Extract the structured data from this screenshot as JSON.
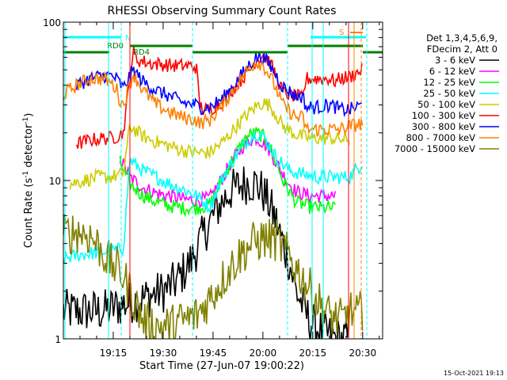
{
  "chart_data": {
    "type": "line",
    "title": "RHESSI Observing Summary Count Rates",
    "xlabel": "Start Time (27-Jun-07 19:00:22)",
    "ylabel": "Count Rate (s",
    "ylabel_sup": "-1",
    "ylabel_rest": " detector",
    "ylabel_sup2": "-1",
    "ylabel_end": ")",
    "y_scale": "log",
    "ylim": [
      1,
      100
    ],
    "xlim_minutes": [
      0,
      96
    ],
    "y_tick_labels": [
      {
        "value": 1,
        "label": "1"
      },
      {
        "value": 10,
        "label": "10"
      },
      {
        "value": 100,
        "label": "100"
      }
    ],
    "x_ticks": [
      {
        "minutes": 15,
        "label": "19:15"
      },
      {
        "minutes": 30,
        "label": "19:30"
      },
      {
        "minutes": 45,
        "label": "19:45"
      },
      {
        "minutes": 60,
        "label": "20:00"
      },
      {
        "minutes": 75,
        "label": "20:15"
      },
      {
        "minutes": 90,
        "label": "20:30"
      }
    ],
    "legend_header": [
      "Det 1,3,4,5,6,9,",
      "FDecim 2, Att 0"
    ],
    "legend_placement": "right",
    "series": [
      {
        "name": "3 - 6 keV",
        "color": "#000000",
        "x": [
          0,
          12,
          16,
          20,
          24,
          27,
          30,
          34,
          38,
          42,
          46,
          50,
          54,
          56,
          58,
          60,
          62,
          64,
          66,
          68,
          70,
          74,
          78,
          82,
          86
        ],
        "y": [
          1.5,
          1.5,
          1.6,
          1.7,
          1.8,
          1.9,
          2.0,
          2.3,
          3.0,
          4.5,
          6.5,
          8.5,
          9.5,
          9.8,
          9.5,
          8.5,
          7.0,
          5.5,
          4.0,
          3.0,
          2.0,
          1.3,
          1.1,
          1.0,
          1.0
        ]
      },
      {
        "name": "6 - 12 keV",
        "color": "#ff00ff",
        "x": [
          17,
          20,
          24,
          28,
          32,
          36,
          40,
          44,
          46,
          48,
          50,
          52,
          54,
          56,
          58,
          60,
          62,
          64,
          66,
          68,
          70,
          74,
          78,
          82
        ],
        "y": [
          14,
          10.5,
          9.0,
          8.3,
          8.0,
          7.6,
          7.5,
          7.7,
          9.0,
          10.5,
          12.5,
          14.5,
          16.5,
          18.0,
          18.5,
          17.5,
          15.5,
          13.0,
          11.0,
          9.5,
          8.5,
          8.0,
          8.0,
          8.0
        ]
      },
      {
        "name": "12 - 25 keV",
        "color": "#00ff00",
        "x": [
          17,
          20,
          24,
          28,
          32,
          36,
          40,
          44,
          46,
          48,
          50,
          52,
          54,
          56,
          58,
          60,
          62,
          64,
          66,
          68,
          70,
          74,
          78,
          82
        ],
        "y": [
          13,
          9.5,
          8.0,
          7.3,
          6.9,
          6.7,
          6.7,
          7.0,
          8.5,
          10.5,
          12.5,
          15.0,
          17.5,
          19.5,
          20.0,
          19.0,
          16.5,
          13.0,
          10.0,
          8.5,
          7.3,
          6.8,
          6.7,
          6.7
        ]
      },
      {
        "name": "25 - 50 keV",
        "color": "#00ffff",
        "x": [
          0,
          5,
          10,
          15,
          18,
          20,
          24,
          28,
          32,
          36,
          40,
          44,
          46,
          48,
          52,
          56,
          58,
          60,
          62,
          64,
          68,
          72,
          76,
          80,
          86,
          90
        ],
        "y": [
          3.2,
          3.4,
          3.5,
          3.6,
          3.7,
          13.5,
          11.5,
          10.5,
          9.5,
          8.8,
          8.0,
          6.8,
          8.5,
          10.5,
          14.5,
          18.5,
          20.0,
          19.0,
          16.5,
          14.0,
          11.5,
          11.0,
          10.5,
          10.5,
          10.5,
          13.0
        ]
      },
      {
        "name": "50 - 100 keV",
        "color": "#cccc00",
        "x": [
          2,
          6,
          10,
          14,
          18,
          20,
          24,
          28,
          32,
          36,
          40,
          44,
          48,
          52,
          56,
          58,
          60,
          62,
          64,
          66,
          70,
          74,
          80,
          86
        ],
        "y": [
          9.5,
          10.0,
          10.5,
          10.5,
          11,
          22,
          19,
          17.5,
          16.5,
          15.5,
          15.0,
          15.0,
          17.5,
          22.0,
          27.0,
          29.5,
          31.0,
          30.0,
          26.0,
          22.0,
          19.5,
          18.5,
          18.5,
          18.0
        ]
      },
      {
        "name": "100 - 300 keV",
        "color": "#ff0000",
        "x": [
          4,
          8,
          12,
          14,
          16,
          18,
          21,
          22,
          26,
          30,
          34,
          38,
          40,
          41,
          42,
          44,
          48,
          52,
          56,
          58,
          60,
          62,
          64,
          66,
          70,
          72,
          73,
          76,
          80,
          82,
          83,
          86,
          90
        ],
        "y": [
          17,
          18,
          18.5,
          18.5,
          19,
          20,
          65,
          58,
          55,
          54,
          53,
          53,
          52,
          30,
          28,
          28,
          32,
          40,
          50,
          58,
          62,
          56,
          46,
          36,
          34,
          33,
          44,
          44,
          44,
          42,
          44,
          45,
          50
        ]
      },
      {
        "name": "300 - 800 keV",
        "color": "#0000ff",
        "x": [
          4,
          8,
          12,
          14,
          16,
          18,
          21,
          24,
          28,
          32,
          36,
          40,
          41,
          44,
          48,
          52,
          56,
          58,
          60,
          62,
          64,
          66,
          70,
          72,
          73,
          76,
          80,
          82,
          83,
          86,
          90
        ],
        "y": [
          40,
          44,
          46,
          46,
          44,
          38,
          50,
          42,
          37,
          34,
          31,
          30,
          29,
          29,
          33,
          42,
          54,
          60,
          60,
          54,
          46,
          39,
          34,
          34,
          29,
          29,
          30,
          29,
          28,
          28,
          30
        ]
      },
      {
        "name": "800 - 7000 keV",
        "color": "#ff8000",
        "x": [
          0,
          4,
          8,
          12,
          14,
          16,
          17,
          18,
          21,
          24,
          28,
          32,
          36,
          40,
          41,
          44,
          48,
          52,
          56,
          58,
          60,
          62,
          64,
          66,
          70,
          72,
          73,
          76,
          80,
          82,
          83,
          86,
          90
        ],
        "y": [
          35,
          40,
          44,
          44,
          42,
          38,
          32,
          30,
          47,
          37,
          30,
          27,
          25,
          24,
          23,
          24,
          30,
          40,
          52,
          56,
          54,
          46,
          38,
          30,
          25,
          25,
          21,
          21,
          21,
          21,
          21,
          22,
          23
        ]
      },
      {
        "name": "7000 - 15000 keV",
        "color": "#808000",
        "x": [
          0,
          4,
          8,
          12,
          14,
          16,
          18,
          20,
          24,
          28,
          32,
          36,
          40,
          44,
          48,
          52,
          56,
          60,
          64,
          68,
          72,
          76,
          80,
          84,
          86,
          88,
          90
        ],
        "y": [
          4.5,
          4.8,
          4.5,
          3.5,
          3.0,
          2.8,
          2.5,
          2.0,
          1.3,
          1.2,
          1.2,
          1.3,
          1.4,
          1.8,
          2.4,
          3.2,
          3.9,
          4.3,
          4.2,
          3.3,
          2.4,
          1.8,
          1.4,
          1.3,
          1.5,
          1.4,
          1.5
        ]
      }
    ],
    "flag_labels": [
      "N",
      "RD0",
      "RD4",
      "S"
    ],
    "timestamp": "15-Oct-2021 19:13"
  }
}
